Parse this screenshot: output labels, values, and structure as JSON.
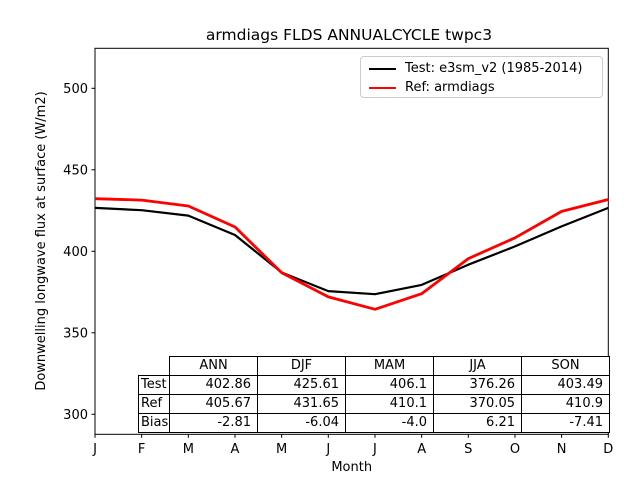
{
  "title": "armdiags FLDS ANNUALCYCLE twpc3",
  "axes": {
    "xlabel": "Month",
    "ylabel": "Downwelling longwave flux at surface (W/m2)"
  },
  "legend": {
    "items": [
      {
        "label": "Test: e3sm_v2 (1985-2014)",
        "color": "#000000"
      },
      {
        "label": "Ref: armdiags",
        "color": "#ff0000"
      }
    ]
  },
  "chart_data": {
    "type": "line",
    "title": "armdiags FLDS ANNUALCYCLE twpc3",
    "xlabel": "Month",
    "ylabel": "Downwelling longwave flux at surface (W/m2)",
    "x_ticklabels": [
      "J",
      "F",
      "M",
      "A",
      "M",
      "J",
      "J",
      "A",
      "S",
      "O",
      "N",
      "D"
    ],
    "yticks": [
      300,
      350,
      400,
      450,
      500
    ],
    "ylim": [
      288,
      524
    ],
    "grid": false,
    "legend_position": "upper right",
    "series": [
      {
        "name": "Test: e3sm_v2 (1985-2014)",
        "color": "#000000",
        "values": [
          426.6,
          425.2,
          421.9,
          410.0,
          387.0,
          375.6,
          373.7,
          379.4,
          391.8,
          403.0,
          415.3,
          426.6
        ]
      },
      {
        "name": "Ref: armdiags",
        "color": "#ff0000",
        "values": [
          432.3,
          431.4,
          427.8,
          414.9,
          386.8,
          372.0,
          364.4,
          374.0,
          395.5,
          408.3,
          424.5,
          431.8
        ]
      }
    ],
    "table": {
      "col_headers": [
        "ANN",
        "DJF",
        "MAM",
        "JJA",
        "SON"
      ],
      "row_headers": [
        "Test",
        "Ref",
        "Bias"
      ],
      "rows": [
        [
          "402.86",
          "425.61",
          "406.1",
          "376.26",
          "403.49"
        ],
        [
          "405.67",
          "431.65",
          "410.1",
          "370.05",
          "410.9"
        ],
        [
          "-2.81",
          "-6.04",
          "-4.0",
          "6.21",
          "-7.41"
        ]
      ]
    }
  }
}
